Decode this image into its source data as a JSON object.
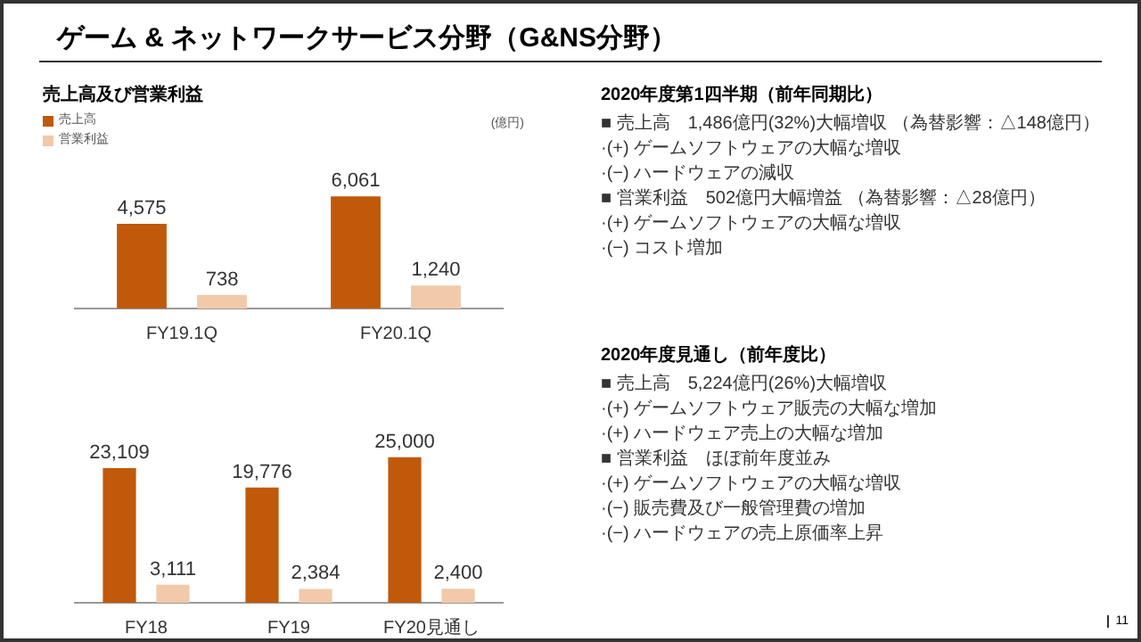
{
  "chart_data": [
    {
      "type": "bar",
      "title": "ゲーム & ネットワークサービス分野（G&NS分野）",
      "subtitle": "売上高及び営業利益",
      "categories": [
        "FY19.1Q",
        "FY20.1Q"
      ],
      "series": [
        {
          "name": "売上高",
          "color": "#c0590a",
          "values": [
            4575,
            6061
          ],
          "value_labels": [
            "4,575",
            "6,061"
          ]
        },
        {
          "name": "営業利益",
          "color": "#f2c9a9",
          "values": [
            738,
            1240
          ],
          "value_labels": [
            "738",
            "1,240"
          ]
        }
      ],
      "legend": "top left",
      "tick_labels": "x",
      "annotations": [
        "(億円)"
      ]
    },
    {
      "type": "other",
      "title": "2020年度第1四半期（前年同期比）",
      "annotations": [
        "■ 売上高　1,486億円(32%)大幅増収 （為替影響：△148億円）",
        "·(+) ゲームソフトウェアの大幅な増収",
        "·(−) ハードウェアの減収",
        "■ 営業利益　502億円大幅増益 （為替影響：△28億円）",
        "·(+) ゲームソフトウェアの大幅な増収",
        "·(−) コスト増加"
      ]
    },
    {
      "type": "bar",
      "categories": [
        "FY18",
        "FY19",
        "FY20見通し"
      ],
      "series": [
        {
          "color": "#c0590a",
          "values": [
            23109,
            19776,
            25000
          ],
          "value_labels": [
            "23,109",
            "19,776",
            "25,000"
          ]
        },
        {
          "color": "#f2c9a9",
          "values": [
            3111,
            2384,
            2400
          ],
          "value_labels": [
            "3,111",
            "2,384",
            "2,400"
          ]
        }
      ],
      "tick_labels": "x"
    },
    {
      "type": "other",
      "title": "2020年度見通し（前年度比）",
      "annotations": [
        "■ 売上高　5,224億円(26%)大幅増収",
        "·(+) ゲームソフトウェア販売の大幅な増加",
        "·(+) ハードウェア売上の大幅な増加",
        "■ 営業利益　ほぼ前年度並み",
        "·(+) ゲームソフトウェアの大幅な増収",
        "·(−) 販売費及び一般管理費の増加",
        "·(−) ハードウェアの売上原価率上昇",
        "11"
      ]
    }
  ]
}
